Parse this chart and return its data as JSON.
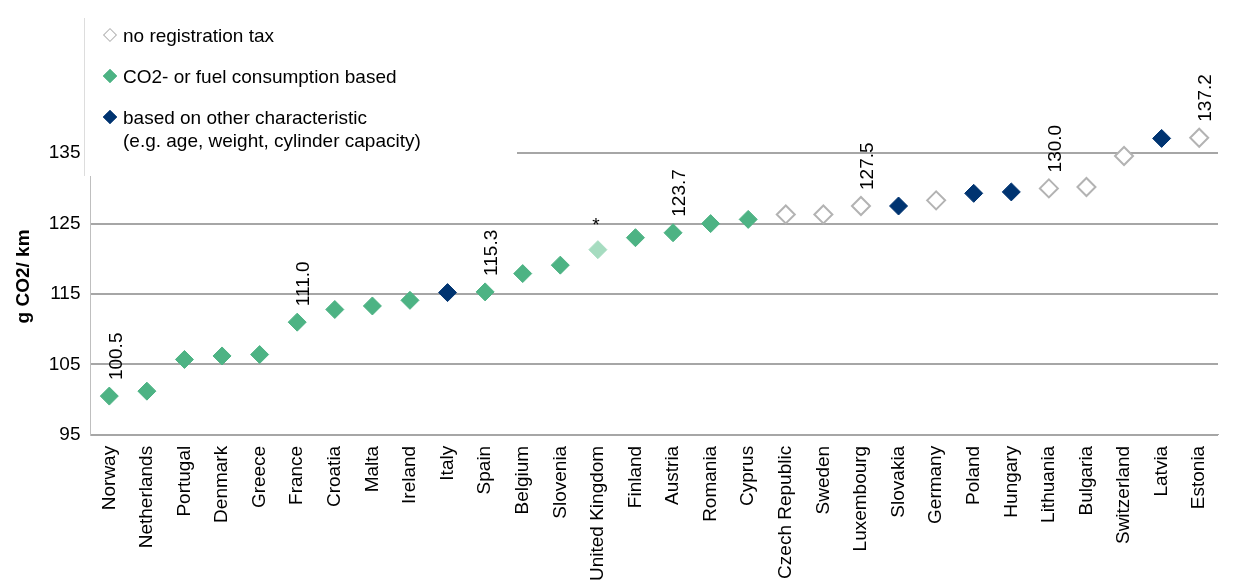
{
  "chart_data": {
    "type": "scatter",
    "ylabel": "g CO2/ km",
    "categories": [
      "Norway",
      "Netherlands",
      "Portugal",
      "Denmark",
      "Greece",
      "France",
      "Croatia",
      "Malta",
      "Ireland",
      "Italy",
      "Spain",
      "Belgium",
      "Slovenia",
      "United Kingdom",
      "Finland",
      "Austria",
      "Romania",
      "Cyprus",
      "Czech Republic",
      "Sweden",
      "Luxembourg",
      "Slovakia",
      "Germany",
      "Poland",
      "Hungary",
      "Lithuania",
      "Bulgaria",
      "Switzerland",
      "Latvia",
      "Estonia"
    ],
    "series": [
      {
        "name": "no registration tax",
        "color": "#b3b3b3",
        "values": [
          null,
          null,
          null,
          null,
          null,
          null,
          null,
          null,
          null,
          null,
          null,
          null,
          null,
          null,
          null,
          null,
          null,
          null,
          126.3,
          126.3,
          127.5,
          null,
          128.3,
          null,
          null,
          130.0,
          130.2,
          134.6,
          null,
          137.2
        ],
        "value_labels": [
          null,
          null,
          null,
          null,
          null,
          null,
          null,
          null,
          null,
          null,
          null,
          null,
          null,
          null,
          null,
          null,
          null,
          null,
          null,
          null,
          "127.5",
          null,
          null,
          null,
          null,
          "130.0",
          null,
          null,
          null,
          "137.2"
        ]
      },
      {
        "name": "CO2- or fuel consumption based",
        "color": "#4db384",
        "values": [
          100.5,
          101.2,
          105.7,
          106.2,
          106.4,
          111.0,
          112.8,
          113.3,
          114.1,
          null,
          115.3,
          117.9,
          119.1,
          null,
          123.0,
          123.7,
          125.0,
          125.6,
          null,
          null,
          null,
          null,
          null,
          null,
          null,
          null,
          null,
          null,
          null,
          null
        ],
        "value_labels": [
          "100.5",
          null,
          null,
          null,
          null,
          "111.0",
          null,
          null,
          null,
          null,
          "115.3",
          null,
          null,
          null,
          null,
          "123.7",
          null,
          null,
          null,
          null,
          null,
          null,
          null,
          null,
          null,
          null,
          null,
          null,
          null,
          null
        ]
      },
      {
        "name": "based on other characteristic\n(e.g. age, weight, cylinder capacity)",
        "color": "#003471",
        "values": [
          null,
          null,
          null,
          null,
          null,
          null,
          null,
          null,
          null,
          115.2,
          null,
          null,
          null,
          null,
          null,
          null,
          null,
          null,
          null,
          null,
          null,
          127.5,
          null,
          129.3,
          129.5,
          null,
          null,
          null,
          137.1,
          null
        ]
      },
      {
        "color": "#a6dcc0",
        "values": [
          null,
          null,
          null,
          null,
          null,
          null,
          null,
          null,
          null,
          null,
          null,
          null,
          null,
          121.3,
          null,
          null,
          null,
          null,
          null,
          null,
          null,
          null,
          null,
          null,
          null,
          null,
          null,
          null,
          null,
          null
        ]
      }
    ],
    "annotations": [
      {
        "text": "*",
        "x": "United Kingdom",
        "y": 121.3
      }
    ],
    "ylim": [
      95,
      140
    ],
    "yticks": [
      95,
      105,
      115,
      125,
      135
    ],
    "grid": "y",
    "legend": "top left",
    "marker": "diamond"
  }
}
